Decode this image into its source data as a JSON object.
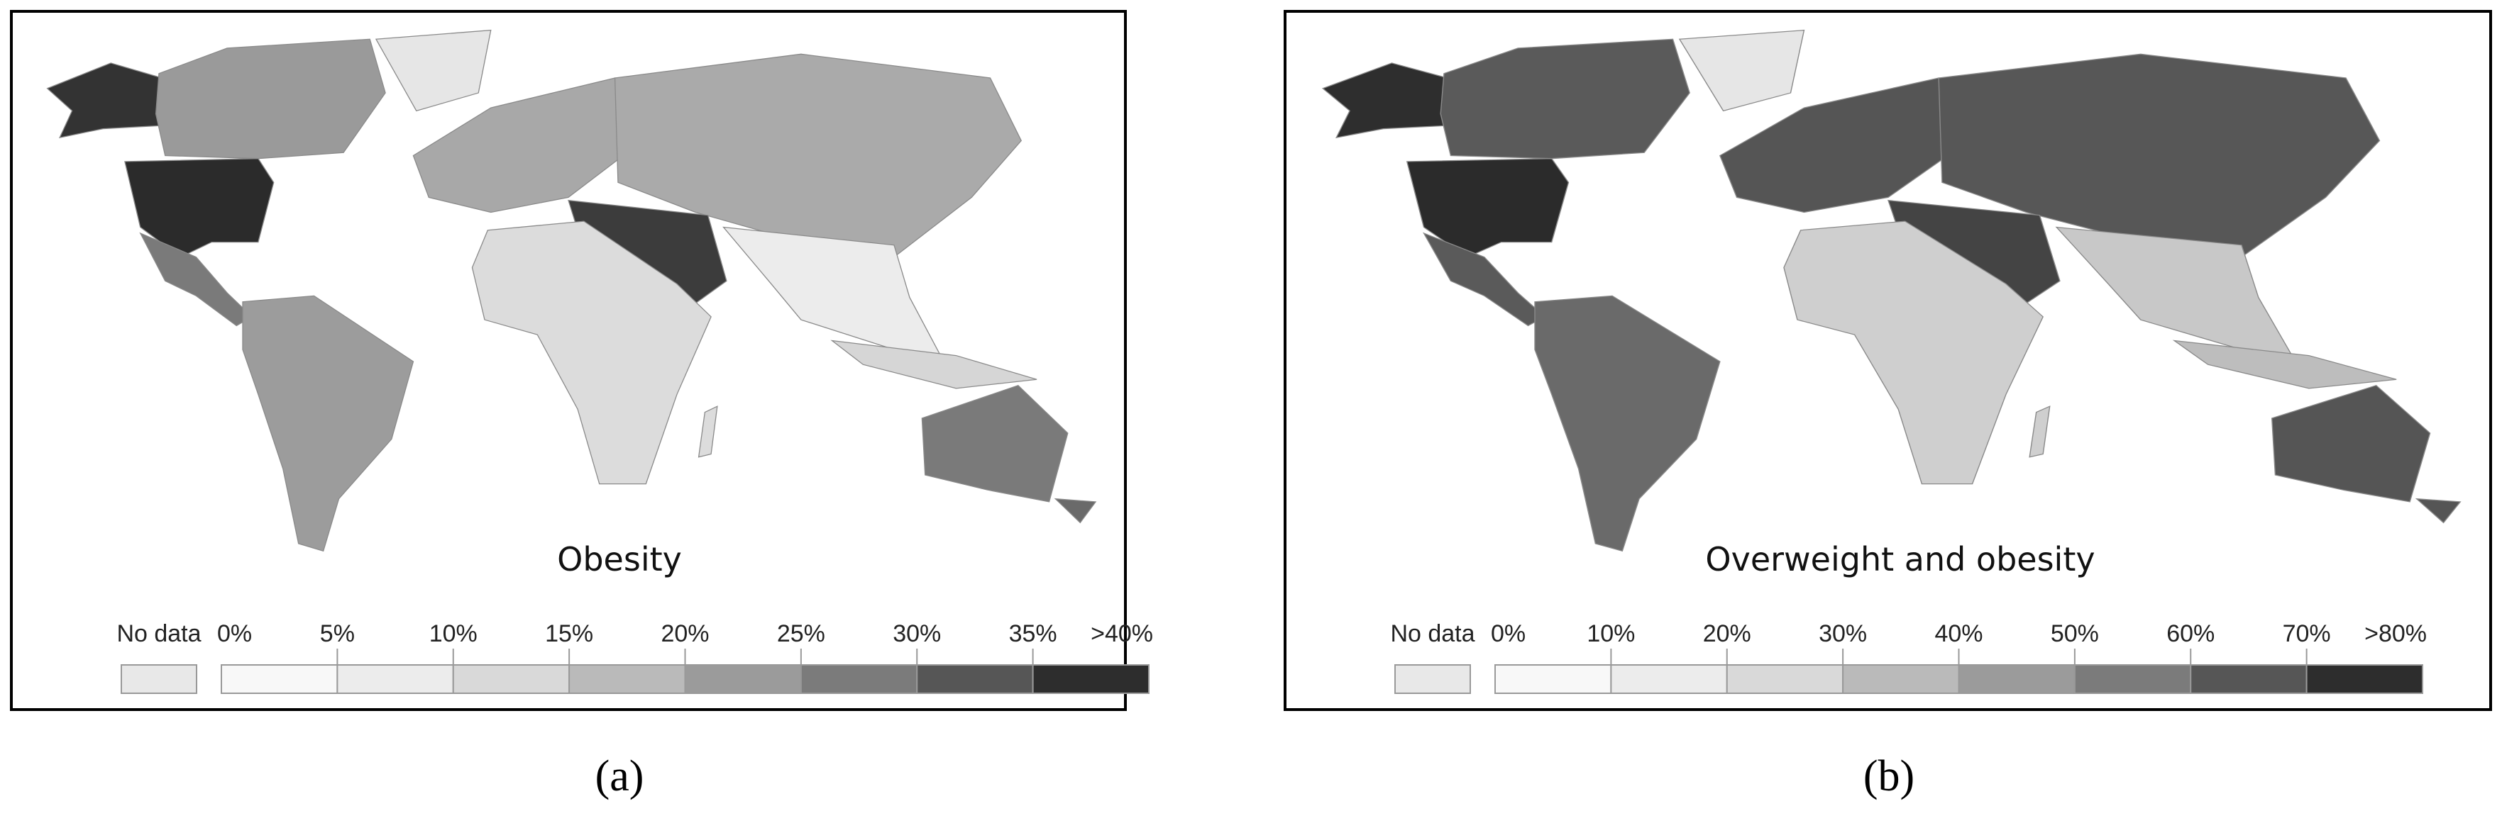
{
  "panels": [
    {
      "title": "Obesity",
      "label": "(a)",
      "legend": {
        "no_data": "No data",
        "no_data_color": "#e8e8e8",
        "labels": [
          "0%",
          "5%",
          "10%",
          "15%",
          "20%",
          "25%",
          "30%",
          "35%",
          ">40%"
        ],
        "colors": [
          "#f8f8f8",
          "#ececec",
          "#d9d9d9",
          "#bababa",
          "#9b9b9b",
          "#7b7b7b",
          "#565656",
          "#2d2d2d"
        ]
      }
    },
    {
      "title": "Overweight and obesity",
      "label": "(b)",
      "legend": {
        "no_data": "No data",
        "no_data_color": "#e8e8e8",
        "labels": [
          "0%",
          "10%",
          "20%",
          "30%",
          "40%",
          "50%",
          "60%",
          "70%",
          ">80%"
        ],
        "colors": [
          "#f8f8f8",
          "#ececec",
          "#d9d9d9",
          "#bababa",
          "#9b9b9b",
          "#7b7b7b",
          "#565656",
          "#2d2d2d"
        ]
      }
    }
  ]
}
